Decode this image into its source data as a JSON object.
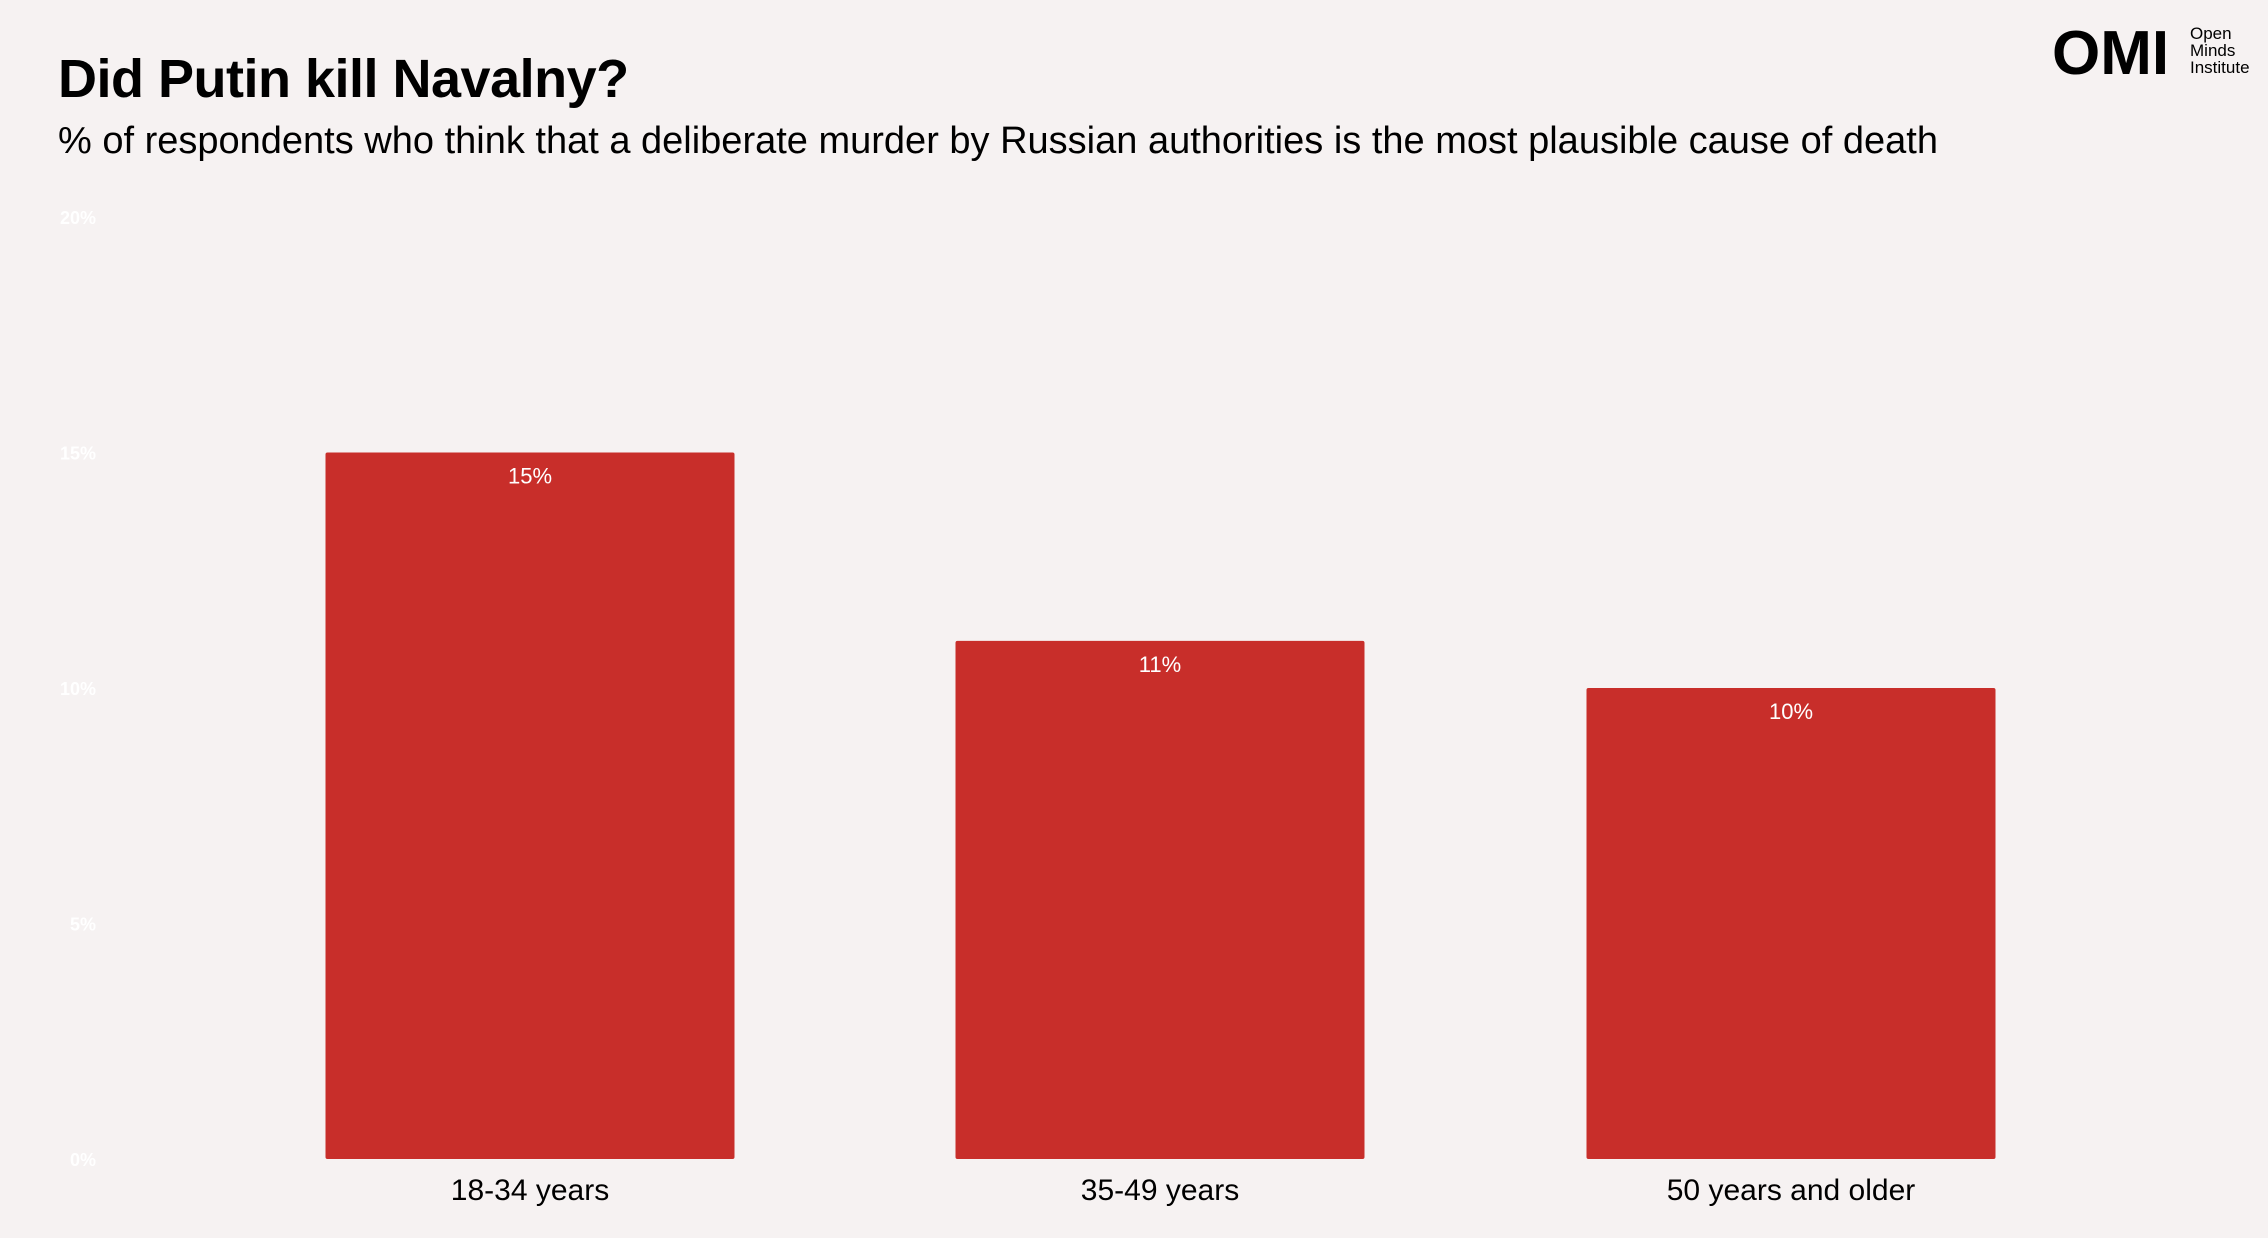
{
  "header": {
    "title": "Did Putin kill Navalny?",
    "subtitle": "% of respondents who think that a deliberate murder by Russian authorities is the most plausible cause of death"
  },
  "logo": {
    "mark": "OMI",
    "line1": "Open",
    "line2": "Minds",
    "line3": "Institute"
  },
  "colors": {
    "background": "#f6f2f2",
    "bar": "#c82e2a",
    "tick_label": "#ffffff"
  },
  "chart_data": {
    "type": "bar",
    "title": "Did Putin kill Navalny?",
    "subtitle": "% of respondents who think that a deliberate murder by Russian authorities is the most plausible cause of death",
    "categories": [
      "18-34 years",
      "35-49 years",
      "50 years and older"
    ],
    "values": [
      15,
      11,
      10
    ],
    "data_labels": [
      "15%",
      "11%",
      "10%"
    ],
    "ylim": [
      0,
      20
    ],
    "yticks": [
      0,
      5,
      10,
      15,
      20
    ],
    "ytick_labels": [
      "0%",
      "5%",
      "10%",
      "15%",
      "20%"
    ],
    "xlabel": "",
    "ylabel": "",
    "grid": false,
    "legend": "none"
  }
}
